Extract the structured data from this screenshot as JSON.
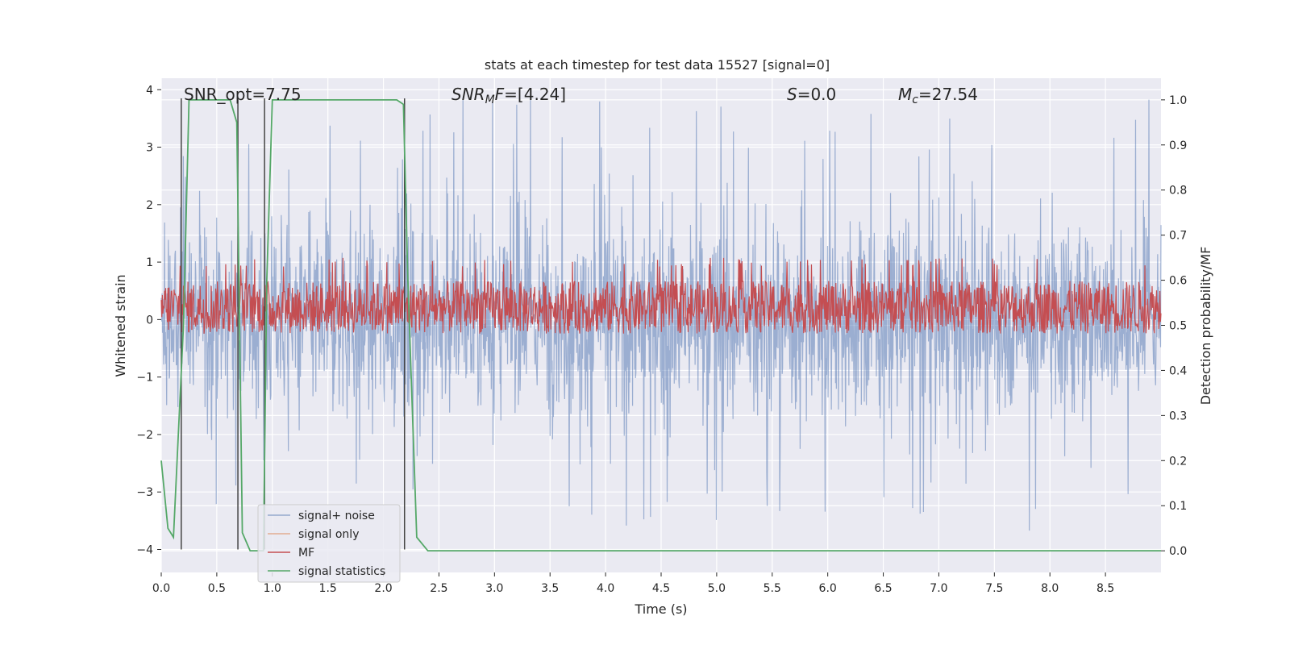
{
  "chart_data": {
    "type": "line",
    "title": "stats at each timestep for test data 15527 [signal=0]",
    "xlabel": "Time (s)",
    "ylabel": "Whitened strain",
    "ylabel_right": "Detection probability/MF",
    "xlim": [
      0.0,
      9.0
    ],
    "ylim": [
      -4.4,
      4.2
    ],
    "ylim_right": [
      -0.048,
      1.048
    ],
    "x_ticks": [
      "0.0",
      "0.5",
      "1.0",
      "1.5",
      "2.0",
      "2.5",
      "3.0",
      "3.5",
      "4.0",
      "4.5",
      "5.0",
      "5.5",
      "6.0",
      "6.5",
      "7.0",
      "7.5",
      "8.0",
      "8.5"
    ],
    "y_ticks": [
      "4",
      "3",
      "2",
      "1",
      "0",
      "−1",
      "−2",
      "−3",
      "−4"
    ],
    "y_ticks_right": [
      "1.0",
      "0.9",
      "0.8",
      "0.7",
      "0.6",
      "0.5",
      "0.4",
      "0.3",
      "0.2",
      "0.1",
      "0.0"
    ],
    "annotations": {
      "snr_opt": "SNR_opt=7.75",
      "snr_mf_label": "SNR",
      "snr_mf_sub": "M",
      "snr_mf_mid": "F",
      "snr_mf_value": "=[4.24]",
      "s_label": "S",
      "s_value": "=0.0",
      "mc_label": "M",
      "mc_sub": "c",
      "mc_value": "=27.54"
    },
    "legend": {
      "placement": "lower-left",
      "entries": [
        "signal+ noise",
        "signal only",
        "MF",
        "signal statistics"
      ]
    },
    "series": [
      {
        "name": "signal+ noise",
        "color": "#4c72b0",
        "description": "whitened strain noise, roughly symmetric, spikes up to ~3.9 and down to ~-3.7",
        "envelope": {
          "upper_typical": 1.5,
          "lower_typical": -1.5,
          "max": 3.9,
          "min": -3.7
        }
      },
      {
        "name": "signal only",
        "color": "#dd8452",
        "values": []
      },
      {
        "name": "MF",
        "color": "#c44e52",
        "axis": "right",
        "description": "matched filter output, oscillating around 0.54",
        "envelope": {
          "center": 0.54,
          "low": 0.5,
          "high": 0.63
        }
      },
      {
        "name": "signal statistics",
        "color": "#55a868",
        "axis": "right",
        "x": [
          0.0,
          0.06,
          0.11,
          0.2,
          0.25,
          0.62,
          0.68,
          0.73,
          0.8,
          0.92,
          0.95,
          1.0,
          2.12,
          2.18,
          2.22,
          2.3,
          2.4,
          9.0
        ],
        "y": [
          0.2,
          0.05,
          0.03,
          0.5,
          1.0,
          1.0,
          0.95,
          0.04,
          0.0,
          0.0,
          0.6,
          1.0,
          1.0,
          0.99,
          0.6,
          0.03,
          0.0,
          0.0
        ]
      }
    ],
    "vertical_lines": {
      "color": "#444444",
      "x": [
        0.18,
        0.69,
        0.93,
        2.19
      ]
    }
  }
}
